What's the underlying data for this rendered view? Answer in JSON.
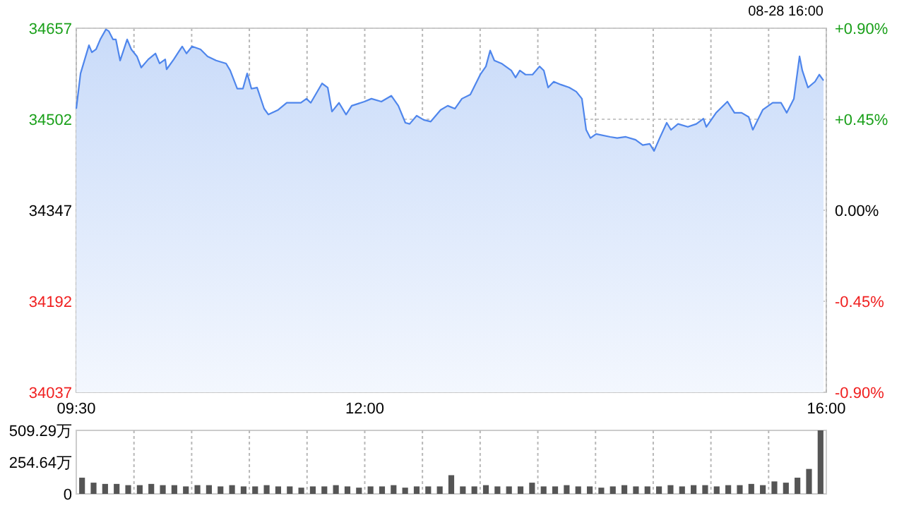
{
  "chart_data": [
    {
      "type": "area",
      "annotations": [
        "08-28 16:00"
      ],
      "x": [
        9.5,
        9.537,
        9.61,
        9.635,
        9.671,
        9.708,
        9.757,
        9.782,
        9.818,
        9.843,
        9.88,
        9.941,
        9.977,
        10.026,
        10.063,
        10.124,
        10.186,
        10.222,
        10.271,
        10.283,
        10.345,
        10.418,
        10.455,
        10.504,
        10.577,
        10.638,
        10.712,
        10.798,
        10.834,
        10.895,
        10.944,
        10.981,
        11.018,
        11.067,
        11.128,
        11.165,
        11.25,
        11.324,
        11.446,
        11.495,
        11.532,
        11.63,
        11.679,
        11.716,
        11.777,
        11.838,
        11.887,
        11.997,
        12.058,
        12.144,
        12.23,
        12.291,
        12.352,
        12.389,
        12.45,
        12.511,
        12.572,
        12.658,
        12.719,
        12.781,
        12.842,
        12.915,
        13.001,
        13.05,
        13.087,
        13.123,
        13.185,
        13.27,
        13.307,
        13.344,
        13.393,
        13.454,
        13.515,
        13.552,
        13.589,
        13.638,
        13.699,
        13.772,
        13.833,
        13.882,
        13.919,
        13.956,
        14.005,
        14.127,
        14.188,
        14.262,
        14.347,
        14.409,
        14.47,
        14.507,
        14.556,
        14.617,
        14.654,
        14.715,
        14.8,
        14.874,
        14.935,
        14.96,
        15.045,
        15.143,
        15.204,
        15.266,
        15.327,
        15.363,
        15.449,
        15.535,
        15.608,
        15.657,
        15.719,
        15.768,
        15.792,
        15.841,
        15.902,
        15.939,
        15.976
      ],
      "series": [
        {
          "color": "#4f86ec",
          "values": [
            34520,
            34580,
            34628,
            34616,
            34621,
            34638,
            34655,
            34652,
            34638,
            34638,
            34602,
            34638,
            34621,
            34609,
            34590,
            34604,
            34614,
            34597,
            34604,
            34587,
            34604,
            34626,
            34614,
            34626,
            34621,
            34609,
            34602,
            34597,
            34585,
            34554,
            34554,
            34580,
            34554,
            34556,
            34520,
            34510,
            34518,
            34530,
            34530,
            34537,
            34530,
            34563,
            34556,
            34515,
            34530,
            34510,
            34525,
            34532,
            34537,
            34532,
            34542,
            34525,
            34496,
            34494,
            34508,
            34501,
            34498,
            34518,
            34525,
            34520,
            34537,
            34544,
            34578,
            34592,
            34619,
            34602,
            34597,
            34585,
            34573,
            34585,
            34578,
            34578,
            34592,
            34585,
            34556,
            34566,
            34561,
            34556,
            34549,
            34537,
            34484,
            34470,
            34477,
            34472,
            34470,
            34472,
            34467,
            34458,
            34460,
            34448,
            34470,
            34496,
            34484,
            34494,
            34489,
            34494,
            34503,
            34489,
            34513,
            34532,
            34513,
            34513,
            34506,
            34484,
            34518,
            34530,
            34530,
            34513,
            34537,
            34609,
            34585,
            34556,
            34566,
            34578,
            34568
          ]
        }
      ],
      "xlim": [
        9.5,
        16
      ],
      "xticks": [
        {
          "value": 9.5,
          "label": "09:30"
        },
        {
          "value": 10,
          "label": null
        },
        {
          "value": 10.5,
          "label": null
        },
        {
          "value": 11,
          "label": null
        },
        {
          "value": 11.5,
          "label": null
        },
        {
          "value": 12,
          "label": "12:00"
        },
        {
          "value": 12.5,
          "label": null
        },
        {
          "value": 13,
          "label": null
        },
        {
          "value": 13.5,
          "label": null
        },
        {
          "value": 14,
          "label": null
        },
        {
          "value": 14.5,
          "label": null
        },
        {
          "value": 15,
          "label": null
        },
        {
          "value": 15.5,
          "label": null
        },
        {
          "value": 16,
          "label": "16:00"
        }
      ],
      "ylim": [
        34037,
        34657
      ],
      "yticks": [
        34037,
        34192,
        34347,
        34502,
        34657
      ],
      "y2lim": [
        -0.9,
        0.9
      ],
      "y2ticks": [
        {
          "value": -0.9,
          "label": "-0.90%"
        },
        {
          "value": -0.45,
          "label": "-0.45%"
        },
        {
          "value": 0,
          "label": "0.00%"
        },
        {
          "value": 0.45,
          "label": "+0.45%"
        },
        {
          "value": 0.9,
          "label": "+0.90%"
        }
      ],
      "grid": true
    },
    {
      "type": "bar",
      "x": [
        9.55,
        9.65,
        9.75,
        9.85,
        9.95,
        10.05,
        10.15,
        10.25,
        10.35,
        10.45,
        10.55,
        10.65,
        10.75,
        10.85,
        10.95,
        11.05,
        11.15,
        11.25,
        11.35,
        11.45,
        11.55,
        11.65,
        11.75,
        11.85,
        11.95,
        12.05,
        12.15,
        12.25,
        12.35,
        12.45,
        12.55,
        12.65,
        12.75,
        12.85,
        12.95,
        13.05,
        13.15,
        13.25,
        13.35,
        13.45,
        13.55,
        13.65,
        13.75,
        13.85,
        13.95,
        14.05,
        14.15,
        14.25,
        14.35,
        14.45,
        14.55,
        14.65,
        14.75,
        14.85,
        14.95,
        15.05,
        15.15,
        15.25,
        15.35,
        15.45,
        15.55,
        15.65,
        15.75,
        15.85,
        15.95
      ],
      "series": [
        {
          "color": "#555555",
          "values": [
            130,
            90,
            80,
            80,
            70,
            70,
            80,
            70,
            70,
            60,
            70,
            70,
            60,
            70,
            60,
            60,
            70,
            60,
            60,
            50,
            60,
            60,
            70,
            60,
            50,
            60,
            60,
            70,
            50,
            60,
            60,
            60,
            150,
            60,
            60,
            70,
            60,
            60,
            60,
            90,
            60,
            60,
            70,
            60,
            60,
            50,
            60,
            70,
            60,
            60,
            60,
            70,
            60,
            70,
            70,
            60,
            70,
            70,
            80,
            70,
            100,
            90,
            130,
            200,
            509.29
          ]
        }
      ],
      "xlim": [
        9.5,
        16
      ],
      "xticks": [
        10,
        10.5,
        11,
        11.5,
        12,
        12.5,
        13,
        13.5,
        14,
        14.5,
        15,
        15.5
      ],
      "ylim": [
        0,
        509.29
      ],
      "yticks": [
        0,
        {
          "value": 254.64,
          "label": "254.64万"
        },
        {
          "value": 509.29,
          "label": "509.29万"
        }
      ],
      "tick_labels": "y",
      "grid": "x"
    }
  ]
}
